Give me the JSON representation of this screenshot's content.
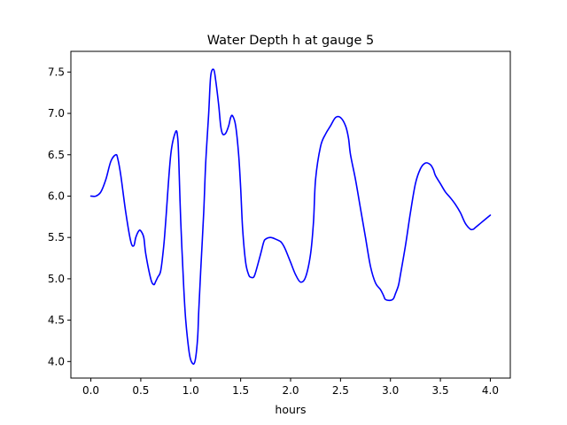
{
  "chart_data": {
    "type": "line",
    "title": "Water Depth h at gauge 5",
    "xlabel": "hours",
    "ylabel": "",
    "xlim": [
      -0.2,
      4.2
    ],
    "ylim": [
      3.8,
      7.75
    ],
    "x_ticks": [
      0.0,
      0.5,
      1.0,
      1.5,
      2.0,
      2.5,
      3.0,
      3.5,
      4.0
    ],
    "x_tick_labels": [
      "0.0",
      "0.5",
      "1.0",
      "1.5",
      "2.0",
      "2.5",
      "3.0",
      "3.5",
      "4.0"
    ],
    "y_ticks": [
      4.0,
      4.5,
      5.0,
      5.5,
      6.0,
      6.5,
      7.0,
      7.5
    ],
    "y_tick_labels": [
      "4.0",
      "4.5",
      "5.0",
      "5.5",
      "6.0",
      "6.5",
      "7.0",
      "7.5"
    ],
    "grid": false,
    "legend": "none",
    "series": [
      {
        "color": "#0000ff",
        "x": [
          0.0,
          0.05,
          0.1,
          0.15,
          0.2,
          0.25,
          0.27,
          0.3,
          0.35,
          0.4,
          0.43,
          0.45,
          0.48,
          0.5,
          0.53,
          0.55,
          0.6,
          0.63,
          0.65,
          0.67,
          0.7,
          0.73,
          0.75,
          0.8,
          0.85,
          0.87,
          0.88,
          0.9,
          0.93,
          0.95,
          0.98,
          1.0,
          1.03,
          1.05,
          1.07,
          1.08,
          1.1,
          1.13,
          1.15,
          1.18,
          1.2,
          1.23,
          1.25,
          1.28,
          1.3,
          1.32,
          1.35,
          1.38,
          1.4,
          1.42,
          1.45,
          1.48,
          1.5,
          1.52,
          1.55,
          1.58,
          1.6,
          1.63,
          1.65,
          1.7,
          1.73,
          1.75,
          1.8,
          1.85,
          1.9,
          1.93,
          1.95,
          2.0,
          2.05,
          2.1,
          2.15,
          2.2,
          2.23,
          2.25,
          2.3,
          2.35,
          2.4,
          2.45,
          2.5,
          2.55,
          2.58,
          2.6,
          2.65,
          2.7,
          2.75,
          2.8,
          2.85,
          2.9,
          2.93,
          2.95,
          3.0,
          3.03,
          3.05,
          3.08,
          3.1,
          3.15,
          3.2,
          3.25,
          3.3,
          3.35,
          3.4,
          3.43,
          3.45,
          3.5,
          3.55,
          3.6,
          3.65,
          3.7,
          3.75,
          3.8,
          3.83,
          3.85,
          3.9,
          3.95,
          4.0
        ],
        "y": [
          6.0,
          6.0,
          6.05,
          6.2,
          6.42,
          6.5,
          6.45,
          6.25,
          5.8,
          5.45,
          5.4,
          5.5,
          5.58,
          5.58,
          5.5,
          5.3,
          5.0,
          4.93,
          4.97,
          5.02,
          5.1,
          5.4,
          5.7,
          6.5,
          6.78,
          6.7,
          6.45,
          5.7,
          4.9,
          4.5,
          4.15,
          4.02,
          3.97,
          4.05,
          4.3,
          4.6,
          5.1,
          5.8,
          6.4,
          7.0,
          7.45,
          7.53,
          7.4,
          7.1,
          6.85,
          6.75,
          6.76,
          6.85,
          6.95,
          6.97,
          6.85,
          6.5,
          6.1,
          5.6,
          5.2,
          5.05,
          5.02,
          5.02,
          5.08,
          5.3,
          5.44,
          5.48,
          5.5,
          5.48,
          5.45,
          5.4,
          5.35,
          5.2,
          5.05,
          4.96,
          5.02,
          5.3,
          5.7,
          6.2,
          6.6,
          6.75,
          6.85,
          6.95,
          6.95,
          6.85,
          6.7,
          6.5,
          6.2,
          5.85,
          5.5,
          5.15,
          4.95,
          4.87,
          4.8,
          4.75,
          4.74,
          4.76,
          4.82,
          4.92,
          5.05,
          5.4,
          5.8,
          6.15,
          6.33,
          6.4,
          6.38,
          6.32,
          6.25,
          6.15,
          6.05,
          5.98,
          5.9,
          5.8,
          5.67,
          5.6,
          5.6,
          5.62,
          5.67,
          5.72,
          5.77
        ]
      }
    ]
  }
}
